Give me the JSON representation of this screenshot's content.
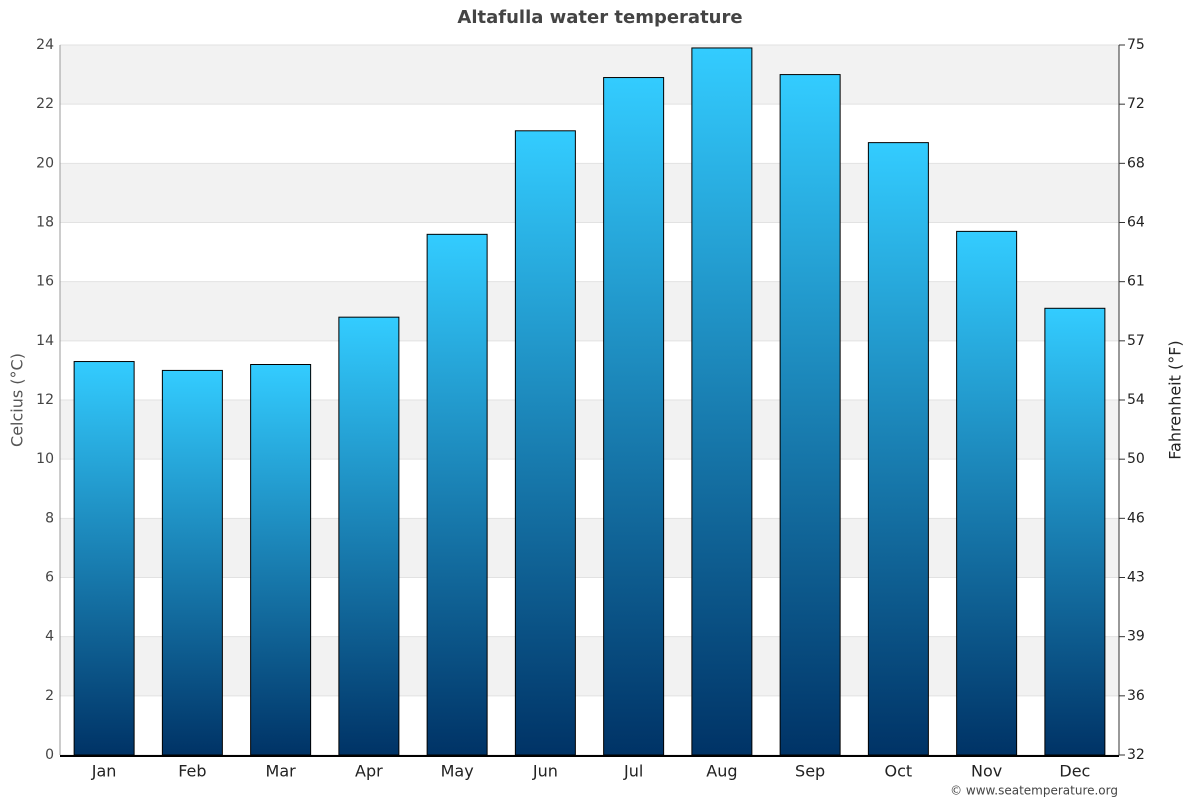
{
  "chart_data": {
    "type": "bar",
    "title": "Altafulla water temperature",
    "ylabel": "Celcius (°C)",
    "y2label": "Fahrenheit (°F)",
    "source": "© www.seatemperature.org",
    "categories": [
      "Jan",
      "Feb",
      "Mar",
      "Apr",
      "May",
      "Jun",
      "Jul",
      "Aug",
      "Sep",
      "Oct",
      "Nov",
      "Dec"
    ],
    "values": [
      13.3,
      13.0,
      13.2,
      14.8,
      17.6,
      21.1,
      22.9,
      23.9,
      23.0,
      20.7,
      17.7,
      15.1
    ],
    "gradient": [
      "#33ccff",
      "#003366"
    ],
    "ylim": [
      0,
      24
    ],
    "yticks": [
      0,
      2,
      4,
      6,
      8,
      10,
      12,
      14,
      16,
      18,
      20,
      22,
      24
    ],
    "y2lim": [
      32,
      75.2
    ],
    "y2ticks": [
      32,
      {
        "value": 35.6,
        "label": "36"
      },
      {
        "value": 39.2,
        "label": "39"
      },
      {
        "value": 42.8,
        "label": "43"
      },
      {
        "value": 46.4,
        "label": "46"
      },
      50,
      {
        "value": 53.6,
        "label": "54"
      },
      {
        "value": 57.2,
        "label": "57"
      },
      {
        "value": 60.8,
        "label": "61"
      },
      {
        "value": 64.4,
        "label": "64"
      },
      68,
      {
        "value": 71.6,
        "label": "72"
      },
      {
        "value": 75.2,
        "label": "75"
      }
    ],
    "grid": true
  }
}
